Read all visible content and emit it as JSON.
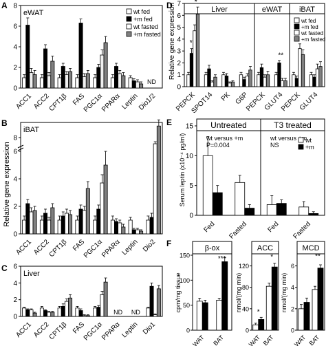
{
  "figure": {
    "y_axis_label_left": "Relative gene expression",
    "panel_letters": {
      "A": "A",
      "B": "B",
      "C": "C",
      "D": "D",
      "E": "E",
      "F": "F"
    },
    "nd_label": "ND"
  },
  "chart_data": [
    {
      "id": "A",
      "type": "bar",
      "panel_label": "eWAT",
      "categories": [
        "ACC1",
        "ACC2",
        "CPT1β",
        "FAS",
        "PGC1α",
        "PPARα",
        "Leptin",
        "Dio1/2"
      ],
      "ylim": [
        0,
        8
      ],
      "yticks": [
        0,
        2,
        4,
        6,
        8
      ],
      "series": [
        {
          "name": "wt fed",
          "values": [
            1.0,
            1.0,
            1.0,
            1.0,
            1.0,
            1.0,
            1.0,
            null
          ],
          "errors": [
            0.3,
            0.3,
            0.3,
            0.3,
            0.3,
            0.3,
            0.2,
            null
          ]
        },
        {
          "name": "+m fed",
          "values": [
            6.1,
            3.8,
            2.1,
            6.3,
            2.0,
            2.1,
            0.7,
            null
          ],
          "errors": [
            0.7,
            0.4,
            0.3,
            0.4,
            0.3,
            0.3,
            0.2,
            null
          ]
        },
        {
          "name": "wt fasted",
          "values": [
            1.5,
            1.2,
            1.3,
            1.1,
            3.2,
            1.4,
            0.6,
            null
          ],
          "errors": [
            0.4,
            0.3,
            0.3,
            0.3,
            0.5,
            0.3,
            0.2,
            null
          ]
        },
        {
          "name": "+m fasted",
          "values": [
            1.3,
            2.6,
            1.6,
            1.4,
            4.4,
            1.2,
            0.4,
            null
          ],
          "errors": [
            0.4,
            0.5,
            0.3,
            0.3,
            0.6,
            0.3,
            0.2,
            null
          ]
        }
      ]
    },
    {
      "id": "B",
      "type": "bar",
      "panel_label": "iBAT",
      "categories": [
        "ACC1",
        "ACC2",
        "CPT1β",
        "FAS",
        "PGC1α",
        "PPARα",
        "Leptin",
        "Dio2"
      ],
      "ylim": [
        0,
        8
      ],
      "yticks": [
        0,
        2,
        4,
        6,
        8
      ],
      "break": true,
      "series": [
        {
          "name": "wt fed",
          "values": [
            1.0,
            1.0,
            1.0,
            1.0,
            1.0,
            1.0,
            1.0,
            1.0
          ],
          "errors": [
            0.3,
            0.3,
            0.3,
            0.3,
            0.3,
            0.3,
            0.2,
            0.3
          ]
        },
        {
          "name": "+m fed",
          "values": [
            2.2,
            1.5,
            1.3,
            1.8,
            1.8,
            0.9,
            0.3,
            1.2
          ],
          "errors": [
            0.3,
            0.3,
            0.3,
            0.3,
            0.3,
            0.2,
            0.1,
            0.3
          ]
        },
        {
          "name": "wt fasted",
          "values": [
            1.6,
            1.0,
            1.5,
            1.7,
            3.7,
            0.8,
            0.3,
            6.5
          ],
          "errors": [
            0.3,
            0.2,
            0.3,
            0.3,
            0.6,
            0.2,
            0.1,
            0.5
          ]
        },
        {
          "name": "+m fasted",
          "values": [
            1.7,
            1.9,
            1.4,
            3.3,
            5.0,
            0.5,
            0.2,
            10.8
          ],
          "errors": [
            0.3,
            0.3,
            0.3,
            0.5,
            1.0,
            0.2,
            0.1,
            1.5
          ]
        }
      ]
    },
    {
      "id": "C",
      "type": "bar",
      "panel_label": "Liver",
      "categories": [
        "ACC1",
        "ACC2",
        "CPT1β",
        "FAS",
        "PGC1α",
        "PPARα",
        "Leptin",
        "Dio1"
      ],
      "ylim": [
        0,
        6
      ],
      "yticks": [
        0,
        2,
        4,
        6
      ],
      "series": [
        {
          "name": "wt fed",
          "values": [
            1.0,
            1.0,
            1.0,
            1.0,
            1.0,
            null,
            null,
            1.0
          ],
          "errors": [
            0.1,
            0.2,
            0.2,
            0.2,
            0.2,
            null,
            null,
            0.1
          ]
        },
        {
          "name": "+m fed",
          "values": [
            0.8,
            0.7,
            1.2,
            0.7,
            1.1,
            null,
            null,
            3.6
          ],
          "errors": [
            0.1,
            0.1,
            0.3,
            0.2,
            0.2,
            null,
            null,
            0.4
          ]
        },
        {
          "name": "wt fasted",
          "values": [
            0.8,
            0.5,
            1.8,
            0.1,
            2.6,
            null,
            null,
            0.2
          ],
          "errors": [
            0.1,
            0.1,
            0.3,
            0.1,
            0.4,
            null,
            null,
            0.1
          ]
        },
        {
          "name": "+m fasted",
          "values": [
            0.4,
            0.5,
            2.2,
            0.1,
            4.1,
            null,
            null,
            3.3
          ],
          "errors": [
            0.1,
            0.1,
            0.4,
            0.1,
            0.5,
            null,
            null,
            0.4
          ]
        }
      ]
    },
    {
      "id": "D",
      "type": "bar",
      "ylim": [
        0,
        7
      ],
      "yticks": [
        0,
        1,
        2,
        3,
        4,
        5,
        6,
        7
      ],
      "groups": [
        {
          "label": "Liver",
          "categories": [
            "PEPCK",
            "SPOT14",
            "PK",
            "G6P"
          ]
        },
        {
          "label": "eWAT",
          "categories": [
            "PEPCK",
            "GLUT4"
          ]
        },
        {
          "label": "iBAT",
          "categories": [
            "PEPCK",
            "GLUT4"
          ]
        }
      ],
      "series": [
        {
          "name": "wt fed",
          "values": [
            1.0,
            1.0,
            1.0,
            1.0,
            1.0,
            1.0,
            1.0,
            1.0
          ],
          "errors": [
            0.2,
            0.2,
            0.2,
            0.2,
            0.2,
            0.2,
            0.2,
            0.2
          ]
        },
        {
          "name": "+m fed",
          "values": [
            2.8,
            1.5,
            0.9,
            0.6,
            1.6,
            2.0,
            0.7,
            0.8
          ],
          "errors": [
            0.4,
            0.3,
            0.2,
            0.2,
            0.3,
            0.2,
            0.2,
            0.2
          ]
        },
        {
          "name": "wt fasted",
          "values": [
            4.7,
            0.4,
            0.3,
            0.9,
            0.8,
            0.5,
            3.2,
            1.5
          ],
          "errors": [
            0.5,
            0.1,
            0.1,
            0.2,
            0.2,
            0.2,
            0.4,
            0.4
          ]
        },
        {
          "name": "+m fasted",
          "values": [
            6.1,
            0.8,
            0.4,
            1.4,
            1.0,
            0.5,
            2.7,
            1.7
          ],
          "errors": [
            0.6,
            0.2,
            0.1,
            0.3,
            0.3,
            0.2,
            0.4,
            0.4
          ]
        }
      ],
      "annotations": [
        "*",
        "*",
        "**"
      ]
    },
    {
      "id": "E",
      "type": "bar",
      "ylabel": "Serum leptin (x10⁻⁴ pg/ml)",
      "ylim": [
        0,
        15
      ],
      "yticks": [
        0,
        5,
        10,
        15
      ],
      "groups": [
        {
          "label": "Untreated",
          "categories": [
            "Fed",
            "Fasted"
          ],
          "note_lines": [
            "wt versus +m",
            "P=0.004"
          ]
        },
        {
          "label": "T3 treated",
          "categories": [
            "Fed",
            "Fasted"
          ],
          "note_lines": [
            "wt versus +m",
            "NS"
          ]
        }
      ],
      "series": [
        {
          "name": "wt",
          "values": [
            10.0,
            5.5,
            1.8,
            1.4
          ],
          "errors": [
            3.2,
            1.2,
            1.5,
            0.9
          ]
        },
        {
          "name": "+m",
          "values": [
            3.8,
            1.2,
            2.0,
            0.3
          ],
          "errors": [
            1.2,
            0.6,
            0.6,
            0.3
          ]
        }
      ]
    },
    {
      "id": "F1",
      "type": "bar",
      "title": "β-ox",
      "ylabel": "cpm/mg tissue",
      "categories": [
        "WAT",
        "BAT"
      ],
      "ylim": [
        0,
        150
      ],
      "yticks": [
        0,
        50,
        100,
        150
      ],
      "series": [
        {
          "name": "wt",
          "values": [
            58,
            60
          ],
          "errors": [
            6,
            4
          ]
        },
        {
          "name": "+m",
          "values": [
            55,
            137
          ],
          "errors": [
            5,
            8
          ]
        }
      ],
      "annotations": [
        "***"
      ]
    },
    {
      "id": "F2",
      "type": "bar",
      "title": "ACC",
      "ylabel": "nmol/(mg min)",
      "categories": [
        "WAT",
        "BAT"
      ],
      "ylim": [
        0,
        140
      ],
      "yticks": [
        0,
        40,
        80,
        120
      ],
      "series": [
        {
          "name": "wt",
          "values": [
            10,
            82
          ],
          "errors": [
            3,
            6
          ]
        },
        {
          "name": "+m",
          "values": [
            20,
            118
          ],
          "errors": [
            4,
            7
          ]
        }
      ],
      "annotations": [
        "*",
        "*"
      ]
    },
    {
      "id": "F3",
      "type": "bar",
      "title": "MCD",
      "ylabel": "nmol/(mg min)",
      "categories": [
        "WAT",
        "BAT"
      ],
      "ylim": [
        0,
        7
      ],
      "yticks": [
        0,
        2,
        4,
        6
      ],
      "series": [
        {
          "name": "wt",
          "values": [
            2.0,
            3.8
          ],
          "errors": [
            0.4,
            0.3
          ]
        },
        {
          "name": "+m",
          "values": [
            2.6,
            5.8
          ],
          "errors": [
            0.4,
            0.3
          ]
        }
      ],
      "annotations": [
        "**"
      ]
    }
  ],
  "legends": {
    "four": [
      {
        "label": "wt fed",
        "color": "#ffffff"
      },
      {
        "label": "+m fed",
        "color": "#000000"
      },
      {
        "label": "wt fasted",
        "color": "#ffffff"
      },
      {
        "label": "+m fasted",
        "color": "#808080"
      }
    ],
    "two": [
      {
        "label": "wt",
        "color": "#ffffff"
      },
      {
        "label": "+m",
        "color": "#000000"
      }
    ]
  },
  "colors": {
    "wt": "#ffffff",
    "m_fed": "#000000",
    "m_fasted": "#808080",
    "wt_fasted_A": "#f0f0f0",
    "stroke": "#000000"
  }
}
